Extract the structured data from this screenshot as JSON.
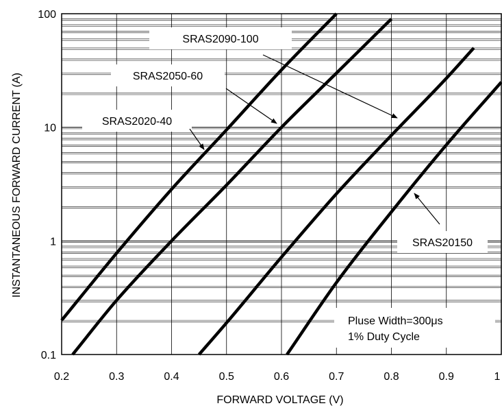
{
  "chart_data": {
    "type": "line",
    "title": "",
    "xlabel": "FORWARD VOLTAGE (V)",
    "ylabel": "INSTANTANEOUS FORWARD CURRENT (A)",
    "xlim": [
      0.2,
      1.0
    ],
    "ylim": [
      0.1,
      100
    ],
    "yscale": "log",
    "x_ticks": [
      "0.2",
      "0.3",
      "0.4",
      "0.5",
      "0.6",
      "0.7",
      "0.8",
      "0.9",
      "1"
    ],
    "y_ticks": [
      "0.1",
      "1",
      "10",
      "100"
    ],
    "grid": true,
    "series": [
      {
        "name": "SRAS2090-100",
        "x": [
          0.2,
          0.3,
          0.4,
          0.5,
          0.6,
          0.7
        ],
        "y": [
          0.2,
          0.78,
          2.85,
          9.5,
          32,
          100
        ]
      },
      {
        "name": "SRAS2050-60",
        "x": [
          0.22,
          0.3,
          0.4,
          0.5,
          0.6,
          0.7,
          0.8
        ],
        "y": [
          0.1,
          0.3,
          1.0,
          3.1,
          10,
          30,
          90
        ]
      },
      {
        "name": "SRAS2020-40",
        "x": [
          0.45,
          0.5,
          0.6,
          0.7,
          0.8,
          0.9,
          0.95
        ],
        "y": [
          0.1,
          0.19,
          0.72,
          2.6,
          8.5,
          27,
          50
        ]
      },
      {
        "name": "SRAS20150",
        "x": [
          0.61,
          0.7,
          0.8,
          0.9,
          1.0
        ],
        "y": [
          0.1,
          0.43,
          1.8,
          7.0,
          25
        ]
      }
    ],
    "annotations": [
      {
        "text": "SRAS2090-100",
        "series": "SRAS2050-60"
      },
      {
        "text": "SRAS2050-60",
        "series": "SRAS2050-60"
      },
      {
        "text": "SRAS2020-40",
        "series": "SRAS2090-100"
      },
      {
        "text": "SRAS20150",
        "series": "SRAS20150"
      }
    ],
    "note": [
      "Pluse Width=300μs",
      "1% Duty Cycle"
    ]
  }
}
